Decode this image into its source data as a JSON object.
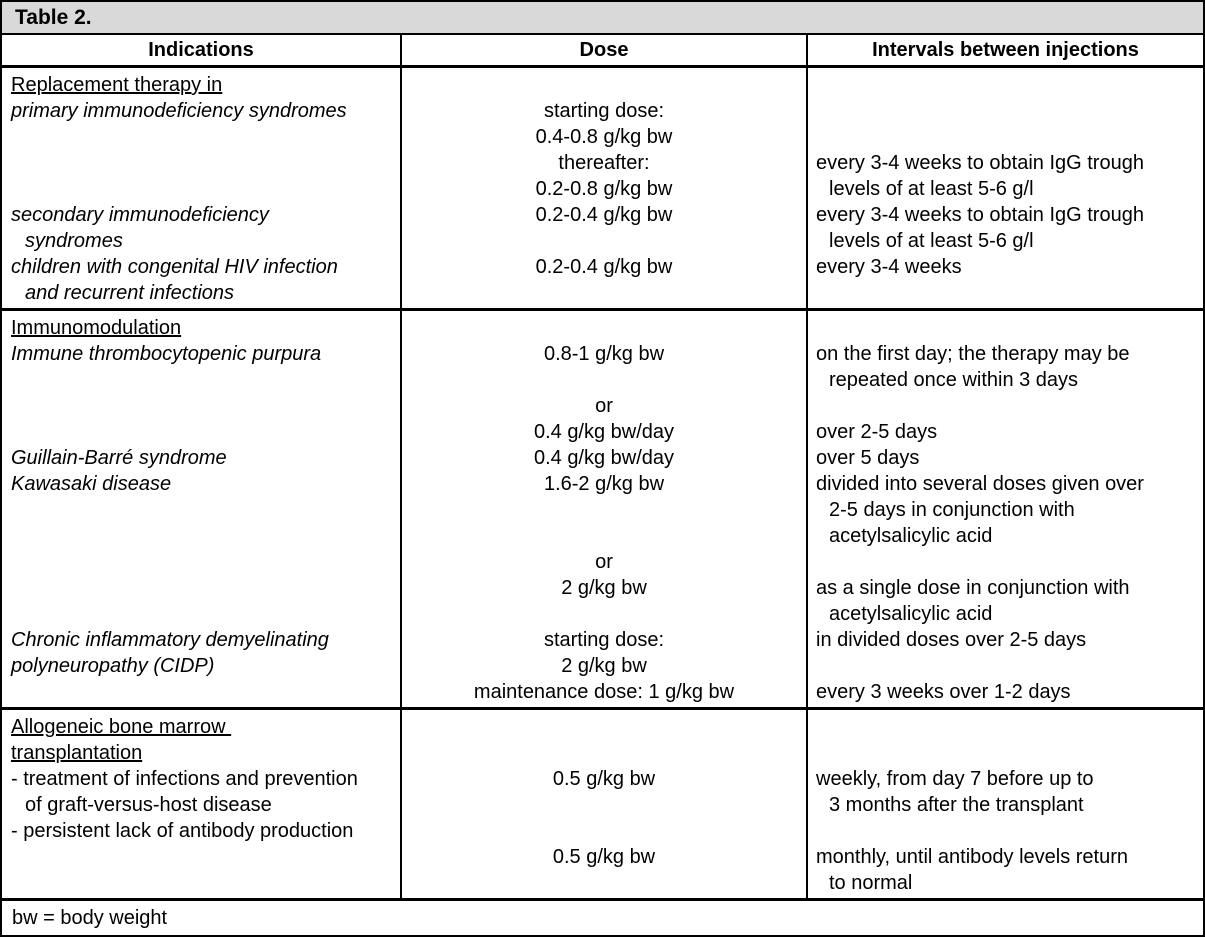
{
  "title": "Table 2.",
  "columns": [
    "Indications",
    "Dose",
    "Intervals between injections"
  ],
  "footnote": "bw = body weight",
  "colors": {
    "title_bg": "#d9d9d9",
    "border": "#000000",
    "text": "#000000"
  },
  "sections": [
    {
      "id": "replacement-therapy",
      "lines": [
        [
          {
            "t": "Replacement therapy in",
            "u": true
          },
          null,
          null
        ],
        [
          {
            "t": "primary immunodeficiency syndromes",
            "i": true
          },
          {
            "t": "starting dose:"
          },
          null
        ],
        [
          null,
          {
            "t": "0.4-0.8 g/kg bw"
          },
          null
        ],
        [
          null,
          {
            "t": "thereafter:"
          },
          {
            "t": "every 3-4 weeks to obtain IgG trough"
          }
        ],
        [
          null,
          {
            "t": "0.2-0.8 g/kg bw"
          },
          {
            "t": "levels of at least 5-6 g/l",
            "ind": true
          }
        ],
        [
          {
            "t": "secondary immunodeficiency",
            "i": true
          },
          {
            "t": "0.2-0.4 g/kg bw"
          },
          {
            "t": "every 3-4 weeks to obtain IgG trough"
          }
        ],
        [
          {
            "t": "syndromes",
            "i": true,
            "ind": true
          },
          null,
          {
            "t": "levels of at least 5-6 g/l",
            "ind": true
          }
        ],
        [
          {
            "t": "children with congenital HIV infection",
            "i": true
          },
          {
            "t": "0.2-0.4 g/kg bw"
          },
          {
            "t": "every 3-4 weeks"
          }
        ],
        [
          {
            "t": "and recurrent infections",
            "i": true,
            "ind": true
          },
          null,
          null
        ]
      ]
    },
    {
      "id": "immunomodulation",
      "lines": [
        [
          {
            "t": "Immunomodulation",
            "u": true
          },
          null,
          null
        ],
        [
          {
            "t": "Immune thrombocytopenic purpura",
            "i": true
          },
          {
            "t": "0.8-1 g/kg bw"
          },
          {
            "t": "on the first day; the therapy may be"
          }
        ],
        [
          null,
          null,
          {
            "t": "repeated once within 3 days",
            "ind": true
          }
        ],
        [
          null,
          {
            "t": "or"
          },
          null
        ],
        [
          null,
          {
            "t": "0.4 g/kg bw/day"
          },
          {
            "t": "over 2-5 days"
          }
        ],
        [
          {
            "t": "Guillain-Barré syndrome",
            "i": true
          },
          {
            "t": "0.4 g/kg bw/day"
          },
          {
            "t": "over 5 days"
          }
        ],
        [
          {
            "t": "Kawasaki disease",
            "i": true
          },
          {
            "t": "1.6-2 g/kg bw"
          },
          {
            "t": "divided into several doses given over"
          }
        ],
        [
          null,
          null,
          {
            "t": "2-5 days in conjunction with",
            "ind": true
          }
        ],
        [
          null,
          null,
          {
            "t": "acetylsalicylic acid",
            "ind": true
          }
        ],
        [
          null,
          {
            "t": "or"
          },
          null
        ],
        [
          null,
          {
            "t": "2 g/kg bw"
          },
          {
            "t": "as a single dose in conjunction with"
          }
        ],
        [
          null,
          null,
          {
            "t": "acetylsalicylic acid",
            "ind": true
          }
        ],
        [
          {
            "t": "Chronic inflammatory demyelinating",
            "i": true
          },
          {
            "t": "starting dose:"
          },
          {
            "t": "in divided doses over 2-5 days"
          }
        ],
        [
          {
            "t": "polyneuropathy (CIDP)",
            "i": true
          },
          {
            "t": "2 g/kg bw"
          },
          null
        ],
        [
          null,
          {
            "t": "maintenance dose: 1 g/kg bw"
          },
          {
            "t": "every 3 weeks over 1-2 days"
          }
        ]
      ]
    },
    {
      "id": "allogeneic-bone-marrow-transplantation",
      "lines": [
        [
          {
            "t": "Allogeneic bone marrow ",
            "u": true
          },
          null,
          null
        ],
        [
          {
            "t": "transplantation",
            "u": true
          },
          null,
          null
        ],
        [
          {
            "t": "- treatment of infections and prevention"
          },
          {
            "t": "0.5 g/kg bw"
          },
          {
            "t": "weekly, from day 7 before up to"
          }
        ],
        [
          {
            "t": "of graft-versus-host disease",
            "ind": true
          },
          null,
          {
            "t": "3 months after the transplant",
            "ind": true
          }
        ],
        [
          {
            "t": "- persistent lack of antibody production"
          },
          null,
          null
        ],
        [
          null,
          {
            "t": "0.5 g/kg bw"
          },
          {
            "t": "monthly, until antibody levels return"
          }
        ],
        [
          null,
          null,
          {
            "t": "to normal",
            "ind": true
          }
        ]
      ]
    }
  ]
}
